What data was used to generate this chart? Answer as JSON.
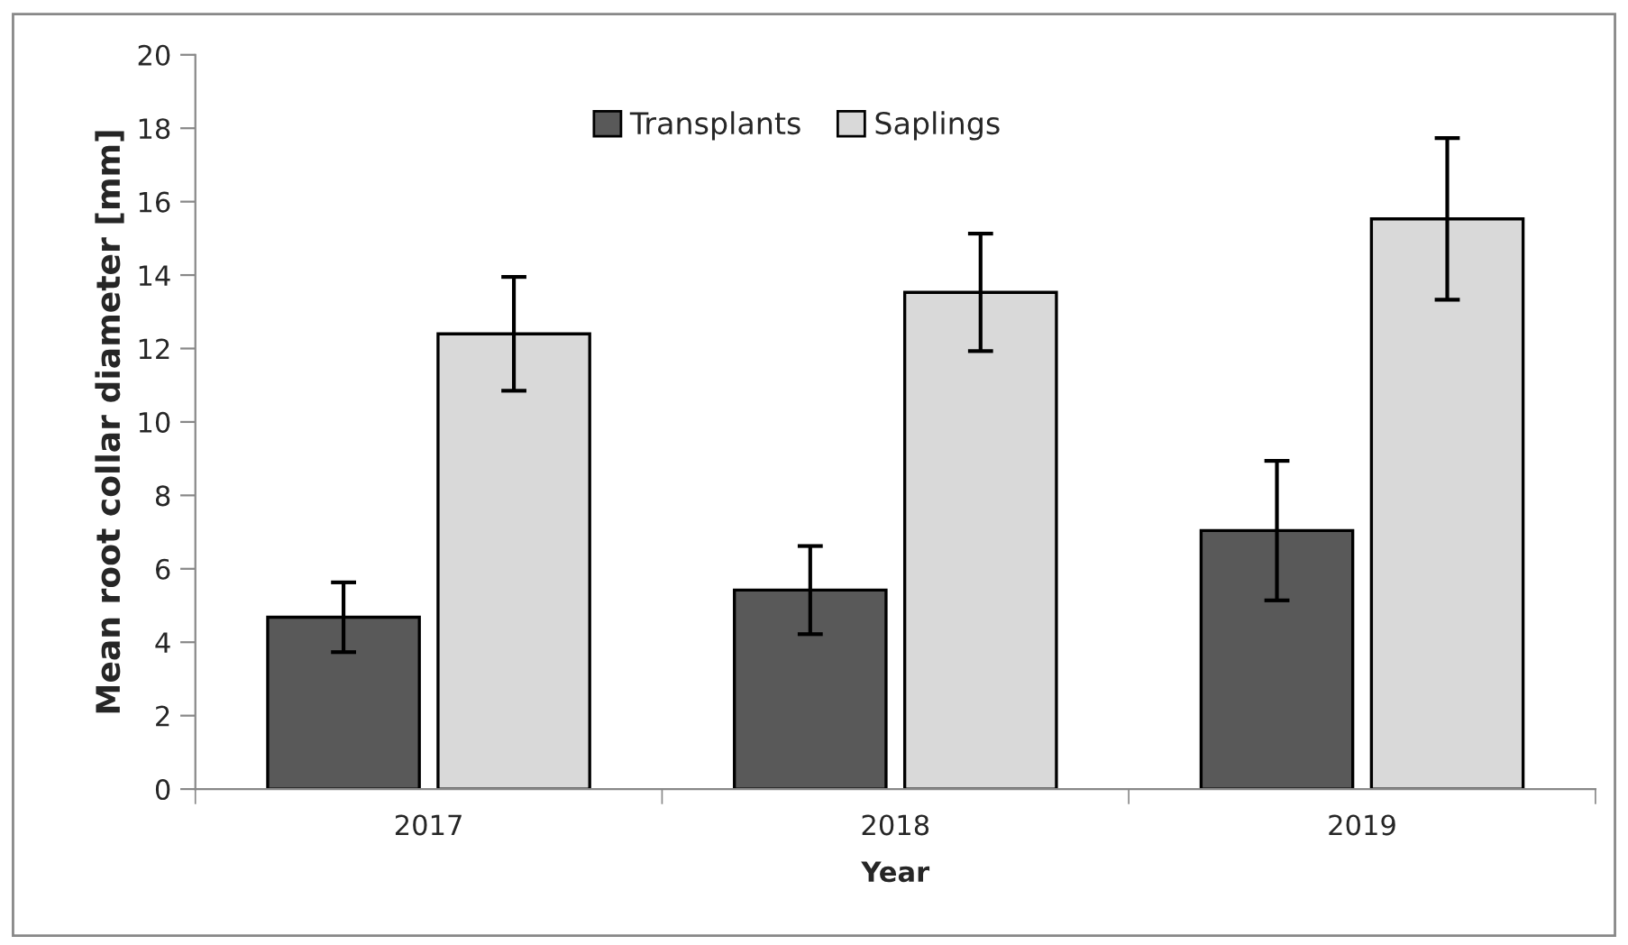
{
  "chart_data": {
    "type": "bar",
    "xlabel": "Year",
    "ylabel": "Mean root collar diameter [mm]",
    "categories": [
      "2017",
      "2018",
      "2019"
    ],
    "series": [
      {
        "name": "Transplants",
        "color": "#595959",
        "values": [
          4.68,
          5.42,
          7.04
        ],
        "errors": [
          0.95,
          1.2,
          1.9
        ]
      },
      {
        "name": "Saplings",
        "color": "#d9d9d9",
        "values": [
          12.4,
          13.53,
          15.53
        ],
        "errors": [
          1.55,
          1.6,
          2.2
        ]
      }
    ],
    "ylim": [
      0,
      20
    ],
    "yticks": [
      0,
      2,
      4,
      6,
      8,
      10,
      12,
      14,
      16,
      18,
      20
    ],
    "grid": false,
    "legend": "top"
  }
}
